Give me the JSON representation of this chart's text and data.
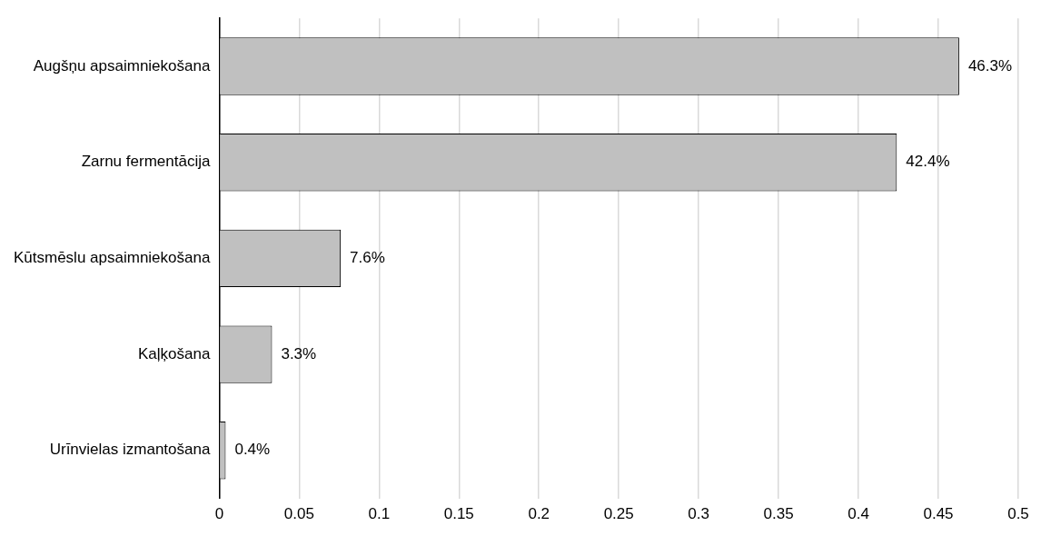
{
  "chart_data": {
    "type": "bar",
    "orientation": "horizontal",
    "categories": [
      "Augšņu apsaimniekošana",
      "Zarnu fermentācija",
      "Kūtsmēslu apsaimniekošana",
      "Kaļķošana",
      "Urīnvielas izmantošana"
    ],
    "values": [
      0.463,
      0.424,
      0.076,
      0.033,
      0.004
    ],
    "value_labels": [
      "46.3%",
      "42.4%",
      "7.6%",
      "3.3%",
      "0.4%"
    ],
    "color": "#c0c0c0",
    "xlim": [
      0,
      0.5
    ],
    "xticks": [
      0,
      0.05,
      0.1,
      0.15,
      0.2,
      0.25,
      0.3,
      0.35,
      0.4,
      0.45,
      0.5
    ],
    "grid": "x",
    "legend": false
  }
}
